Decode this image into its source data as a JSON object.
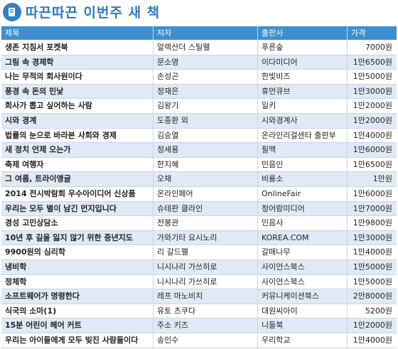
{
  "header": {
    "title": "따끈따끈 이번주 새 책"
  },
  "columns": [
    "제목",
    "저자",
    "출판사",
    "가격"
  ],
  "books": [
    {
      "title": "생존 지침서 포켓북",
      "author": "알렉산더 스틸웰",
      "publisher": "푸른숲",
      "price": "7000원"
    },
    {
      "title": "그림 속 경제학",
      "author": "문소영",
      "publisher": "이다미디어",
      "price": "1만6500원"
    },
    {
      "title": "나는 무적의 회사원이다",
      "author": "손성곤",
      "publisher": "한빛비즈",
      "price": "1만5000원"
    },
    {
      "title": "풍경 속 돈의 민낯",
      "author": "정재은",
      "publisher": "휴먼큐브",
      "price": "1만3000원"
    },
    {
      "title": "회사가 뽑고 싶어하는 사람",
      "author": "김왕기",
      "publisher": "일키",
      "price": "1만2000원"
    },
    {
      "title": "시와 경계",
      "author": "도종환 외",
      "publisher": "시와경계사",
      "price": "1만2000원"
    },
    {
      "title": "법률의 눈으로 바라본 사회와 경제",
      "author": "김승열",
      "publisher": "온라인리걸센타 출판부",
      "price": "1만4000원"
    },
    {
      "title": "새 정치 언제 오는가",
      "author": "정세용",
      "publisher": "필맥",
      "price": "1만6000원"
    },
    {
      "title": "축제 여행자",
      "author": "한지혜",
      "publisher": "민음인",
      "price": "1만6500원"
    },
    {
      "title": "그 여름, 트라이앵글",
      "author": "오채",
      "publisher": "비룡소",
      "price": "1만원"
    },
    {
      "title": "2014 전시박람회 우수아이디어 신상품",
      "author": "온라인페어",
      "publisher": "OnlineFair",
      "price": "1만6000원"
    },
    {
      "title": "우리는 모두 별이 남긴 먼지입니다",
      "author": "슈테판 클라인",
      "publisher": "청어람미디어",
      "price": "1만7000원"
    },
    {
      "title": "경성 고민상담소",
      "author": "전봉관",
      "publisher": "민음사",
      "price": "1만9800원"
    },
    {
      "title": "10년 후 길을 잃지 않기 위한 중년지도",
      "author": "가와기타 요시노리",
      "publisher": "KOREA.COM",
      "price": "1만3000원"
    },
    {
      "title": "9900원의 심리학",
      "author": "리 갈드웰",
      "publisher": "갈매나무",
      "price": "1만4000원"
    },
    {
      "title": "냉비학",
      "author": "니시나리 가쓰히로",
      "publisher": "사이언스북스",
      "price": "1만5000원"
    },
    {
      "title": "정체학",
      "author": "니시나리 가쓰히로",
      "publisher": "사이언스북스",
      "price": "1만5000원"
    },
    {
      "title": "소프트웨어가 명령한다",
      "author": "레프 마노비치",
      "publisher": "커뮤니케이션북스",
      "price": "2만8000원"
    },
    {
      "title": "식국의 소마(1)",
      "author": "유토 츠쿠다",
      "publisher": "대원씨아이",
      "price": "5200원"
    },
    {
      "title": "15분 어린이 헤어 커트",
      "author": "주소 키즈",
      "publisher": "니들북",
      "price": "1만2000원"
    },
    {
      "title": "우리는 아이들에게 모두 빚진 사람들이다",
      "author": "송인수",
      "publisher": "우리학교",
      "price": "1만4000원"
    }
  ]
}
